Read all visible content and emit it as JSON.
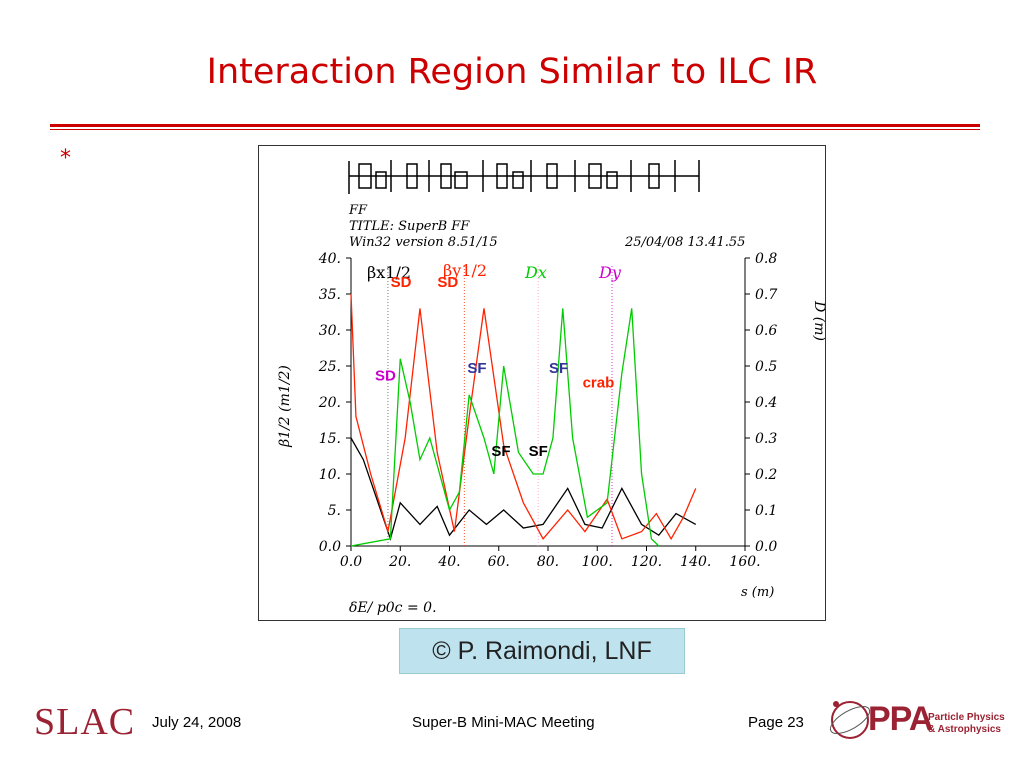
{
  "slide": {
    "title": "Interaction Region Similar to ILC IR",
    "bullet": "*",
    "credit": "© P. Raimondi, LNF"
  },
  "footer": {
    "logo_left": "SLAC",
    "date": "July 24, 2008",
    "meeting": "Super-B Mini-MAC Meeting",
    "page": "Page 23",
    "logo_right": "PPA",
    "logo_right_sub1": "Particle Physics",
    "logo_right_sub2": "& Astrophysics"
  },
  "colors": {
    "title": "#cc0000",
    "beta_x": "#000000",
    "beta_y": "#ff2200",
    "dx": "#00cc00",
    "credit_bg": "#bfe3ee"
  },
  "chart_data": {
    "type": "line",
    "header": {
      "line1": "FF",
      "line2": "TITLE: SuperB FF",
      "line3": "Win32 version 8.51/15",
      "date": "25/04/08   13.41.55"
    },
    "xlabel": "s (m)",
    "ylabel_left": "β1/2 (m1/2)",
    "ylabel_right": "D (m)",
    "bottom_note": "δE/ p0c  =  0.",
    "xlim": [
      0,
      160
    ],
    "ylim_left": [
      0,
      40
    ],
    "ylim_right": [
      0,
      0.8
    ],
    "x_ticks": [
      "0.0",
      "20.",
      "40.",
      "60.",
      "80.",
      "100.",
      "120.",
      "140.",
      "160."
    ],
    "y_ticks_left": [
      "0.0",
      "5.",
      "10.",
      "15.",
      "20.",
      "25.",
      "30.",
      "35.",
      "40."
    ],
    "y_ticks_right": [
      "0.0",
      "0.1",
      "0.2",
      "0.3",
      "0.4",
      "0.5",
      "0.6",
      "0.7",
      "0.8"
    ],
    "legend": {
      "bx": "βx1/2",
      "by": "βy1/2",
      "dx": "Dx",
      "dy": "Dy"
    },
    "annotations": [
      {
        "text": "SD",
        "x": 33,
        "y": 36,
        "color": "#ff2200"
      },
      {
        "text": "SD",
        "x": 72,
        "y": 36,
        "color": "#ff2200"
      },
      {
        "text": "SD",
        "x": 20,
        "y": 23,
        "color": "#cc00cc"
      },
      {
        "text": "SF",
        "x": 97,
        "y": 24,
        "color": "#333399"
      },
      {
        "text": "SF",
        "x": 165,
        "y": 24,
        "color": "#333399"
      },
      {
        "text": "crab",
        "x": 193,
        "y": 22,
        "color": "#ff2200"
      },
      {
        "text": "SF",
        "x": 117,
        "y": 12.5,
        "color": "#000000"
      },
      {
        "text": "SF",
        "x": 148,
        "y": 12.5,
        "color": "#000000"
      }
    ],
    "series": [
      {
        "name": "βx1/2",
        "axis": "left",
        "color": "#000000",
        "x": [
          0,
          5,
          10,
          16,
          20,
          28,
          35,
          40,
          48,
          55,
          62,
          70,
          78,
          88,
          95,
          102,
          110,
          118,
          125,
          132,
          140
        ],
        "y": [
          15,
          12,
          7,
          1,
          6,
          3,
          5.5,
          1.5,
          5,
          3,
          5,
          2.5,
          3,
          8,
          3,
          2.5,
          8,
          3,
          1.5,
          4.5,
          3
        ]
      },
      {
        "name": "βy1/2",
        "axis": "left",
        "color": "#ff2200",
        "x": [
          0,
          2,
          8,
          15,
          22,
          28,
          35,
          42,
          48,
          54,
          62,
          70,
          78,
          88,
          95,
          104,
          110,
          118,
          124,
          130,
          135,
          140
        ],
        "y": [
          35,
          18,
          10,
          2,
          15,
          33,
          13,
          2,
          18,
          33,
          14,
          6,
          1,
          5,
          2,
          6.5,
          1,
          2,
          4.5,
          1,
          4,
          8
        ]
      },
      {
        "name": "Dx",
        "axis": "right",
        "color": "#00cc00",
        "x": [
          0,
          16,
          20,
          24,
          28,
          32,
          40,
          44,
          48,
          54,
          58,
          62,
          68,
          74,
          78,
          82,
          86,
          90,
          96,
          104,
          110,
          114,
          118,
          122,
          125
        ],
        "y": [
          0.0,
          0.02,
          0.52,
          0.4,
          0.24,
          0.3,
          0.1,
          0.15,
          0.42,
          0.3,
          0.2,
          0.5,
          0.26,
          0.2,
          0.2,
          0.3,
          0.66,
          0.3,
          0.08,
          0.12,
          0.48,
          0.66,
          0.2,
          0.02,
          0.0
        ]
      }
    ]
  }
}
